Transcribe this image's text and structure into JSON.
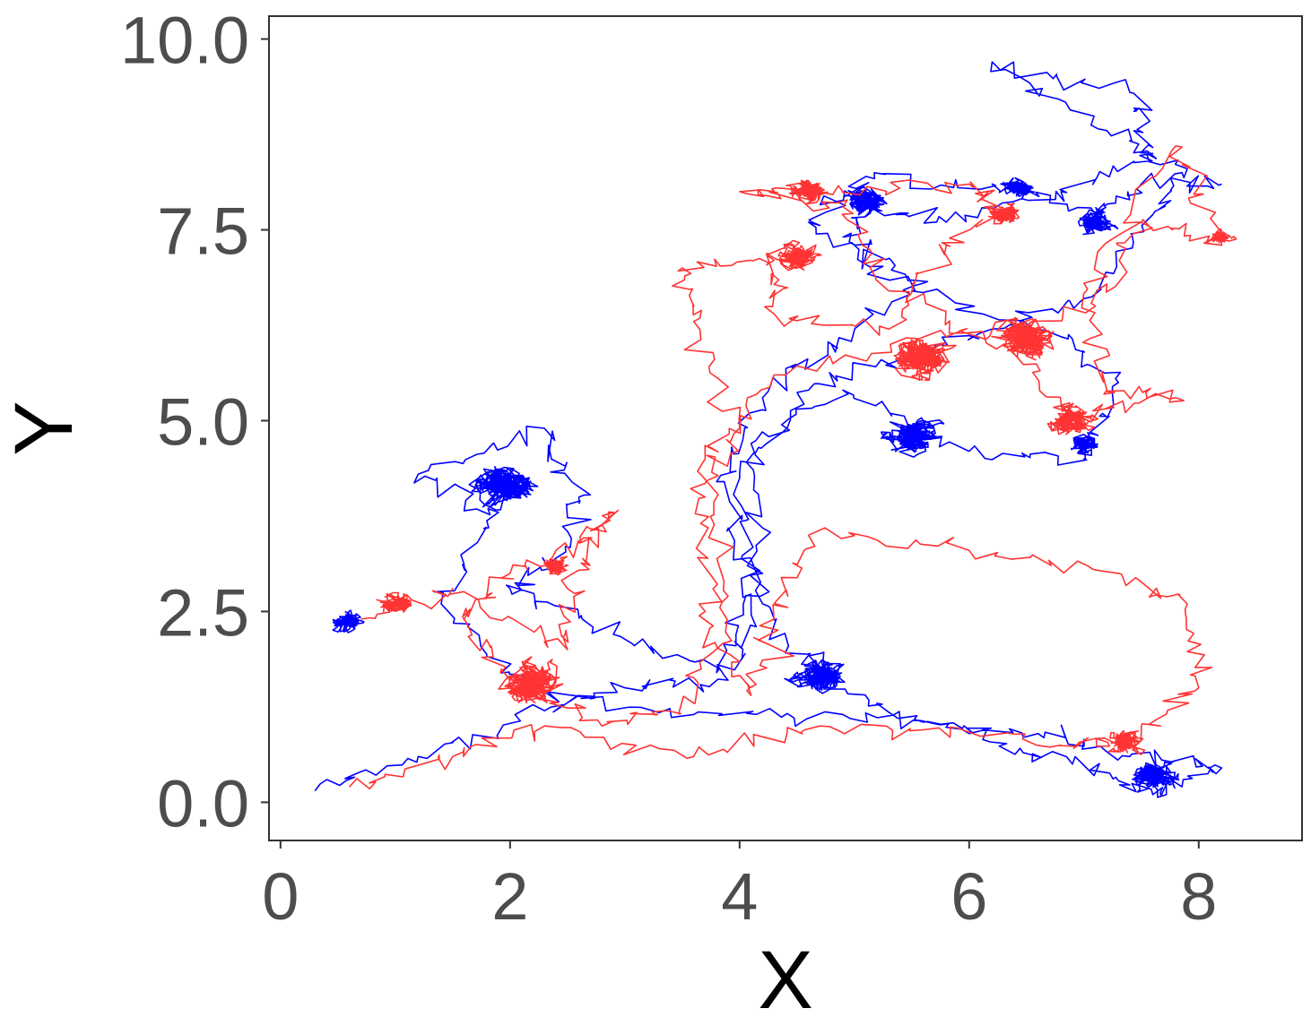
{
  "chart_data": {
    "type": "line",
    "xlabel": "X",
    "ylabel": "Y",
    "xlim": [
      -0.1,
      8.9
    ],
    "ylim": [
      -0.5,
      10.3
    ],
    "x_ticks": [
      "0",
      "2",
      "4",
      "6",
      "8"
    ],
    "y_ticks": [
      "0.0",
      "2.5",
      "5.0",
      "7.5",
      "10.0"
    ],
    "x_tick_values": [
      0,
      2,
      4,
      6,
      8
    ],
    "y_tick_values": [
      0,
      2.5,
      5,
      7.5,
      10
    ],
    "grid": false,
    "legend": "none",
    "series": [
      {
        "color": "#0000ff",
        "clusters": [
          {
            "cx": 1.95,
            "cy": 4.15,
            "r": 0.42
          },
          {
            "cx": 4.7,
            "cy": 1.65,
            "r": 0.35
          },
          {
            "cx": 5.5,
            "cy": 4.8,
            "r": 0.35
          },
          {
            "cx": 5.1,
            "cy": 7.9,
            "r": 0.3
          },
          {
            "cx": 6.4,
            "cy": 8.05,
            "r": 0.22
          },
          {
            "cx": 7.1,
            "cy": 7.6,
            "r": 0.25
          },
          {
            "cx": 7.6,
            "cy": 0.35,
            "r": 0.3
          },
          {
            "cx": 0.6,
            "cy": 2.35,
            "r": 0.22
          },
          {
            "cx": 7.0,
            "cy": 4.7,
            "r": 0.2
          }
        ],
        "path": [
          [
            0.3,
            0.15
          ],
          [
            1.2,
            0.6
          ],
          [
            2.3,
            1.2
          ],
          [
            3.0,
            1.5
          ],
          [
            3.9,
            1.6
          ],
          [
            4.1,
            2.5
          ],
          [
            4.0,
            4.3
          ],
          [
            4.6,
            5.4
          ],
          [
            5.4,
            5.8
          ],
          [
            6.2,
            6.2
          ],
          [
            7.0,
            6.6
          ],
          [
            7.6,
            7.7
          ],
          [
            7.9,
            8.3
          ],
          [
            7.2,
            8.8
          ],
          [
            6.2,
            9.7
          ],
          [
            7.4,
            9.3
          ],
          [
            7.6,
            8.5
          ],
          [
            6.8,
            8.0
          ],
          [
            5.8,
            7.6
          ],
          [
            5.1,
            7.9
          ],
          [
            5.0,
            7.3
          ],
          [
            5.6,
            6.8
          ],
          [
            4.8,
            6.0
          ],
          [
            4.2,
            5.3
          ],
          [
            3.8,
            4.2
          ],
          [
            4.2,
            2.6
          ],
          [
            4.7,
            1.6
          ],
          [
            5.6,
            1.05
          ],
          [
            6.6,
            0.9
          ],
          [
            7.4,
            0.6
          ],
          [
            8.2,
            0.45
          ],
          [
            7.6,
            0.1
          ],
          [
            6.9,
            0.5
          ],
          [
            6.0,
            0.9
          ],
          [
            4.9,
            1.15
          ],
          [
            3.6,
            1.15
          ],
          [
            2.2,
            1.45
          ],
          [
            1.4,
            2.6
          ],
          [
            1.9,
            3.8
          ],
          [
            1.2,
            4.3
          ],
          [
            2.3,
            4.9
          ],
          [
            2.6,
            4.0
          ],
          [
            2.4,
            3.2
          ],
          [
            2.0,
            2.8
          ],
          [
            2.9,
            2.2
          ],
          [
            3.8,
            1.7
          ],
          [
            4.2,
            3.0
          ],
          [
            4.1,
            4.7
          ],
          [
            4.9,
            5.4
          ],
          [
            6.0,
            4.6
          ],
          [
            7.0,
            4.5
          ],
          [
            7.3,
            5.5
          ],
          [
            6.8,
            6.1
          ],
          [
            5.5,
            6.7
          ],
          [
            4.6,
            7.6
          ],
          [
            5.1,
            8.2
          ],
          [
            6.2,
            8.1
          ],
          [
            7.1,
            7.7
          ],
          [
            7.5,
            8.1
          ],
          [
            8.2,
            8.1
          ]
        ]
      },
      {
        "color": "#ff3333",
        "clusters": [
          {
            "cx": 2.15,
            "cy": 1.55,
            "r": 0.42
          },
          {
            "cx": 5.6,
            "cy": 5.85,
            "r": 0.42
          },
          {
            "cx": 6.5,
            "cy": 6.05,
            "r": 0.4
          },
          {
            "cx": 6.9,
            "cy": 5.0,
            "r": 0.3
          },
          {
            "cx": 4.5,
            "cy": 7.15,
            "r": 0.28
          },
          {
            "cx": 4.6,
            "cy": 8.0,
            "r": 0.25
          },
          {
            "cx": 6.3,
            "cy": 7.7,
            "r": 0.22
          },
          {
            "cx": 7.35,
            "cy": 0.8,
            "r": 0.25
          },
          {
            "cx": 1.0,
            "cy": 2.6,
            "r": 0.22
          },
          {
            "cx": 2.4,
            "cy": 3.1,
            "r": 0.2
          },
          {
            "cx": 8.2,
            "cy": 7.4,
            "r": 0.15
          }
        ],
        "path": [
          [
            0.6,
            0.2
          ],
          [
            1.5,
            0.6
          ],
          [
            2.3,
            1.0
          ],
          [
            3.6,
            0.6
          ],
          [
            4.7,
            1.0
          ],
          [
            5.6,
            0.95
          ],
          [
            6.8,
            0.75
          ],
          [
            7.4,
            0.8
          ],
          [
            8.0,
            1.5
          ],
          [
            7.9,
            2.6
          ],
          [
            7.3,
            3.0
          ],
          [
            6.0,
            3.3
          ],
          [
            4.6,
            3.5
          ],
          [
            4.3,
            2.4
          ],
          [
            4.1,
            1.4
          ],
          [
            3.7,
            2.5
          ],
          [
            3.7,
            4.0
          ],
          [
            4.0,
            4.9
          ],
          [
            3.6,
            6.3
          ],
          [
            3.5,
            7.0
          ],
          [
            4.3,
            7.1
          ],
          [
            4.3,
            6.4
          ],
          [
            5.3,
            6.2
          ],
          [
            5.8,
            7.3
          ],
          [
            6.3,
            7.7
          ],
          [
            6.0,
            8.1
          ],
          [
            4.9,
            8.0
          ],
          [
            4.0,
            8.0
          ],
          [
            4.9,
            7.8
          ],
          [
            5.3,
            6.7
          ],
          [
            6.3,
            6.0
          ],
          [
            6.9,
            5.1
          ],
          [
            7.8,
            5.3
          ],
          [
            7.2,
            5.4
          ],
          [
            7.0,
            6.8
          ],
          [
            7.8,
            8.6
          ],
          [
            8.2,
            7.3
          ],
          [
            7.5,
            7.6
          ],
          [
            7.1,
            6.5
          ],
          [
            5.8,
            6.1
          ],
          [
            4.3,
            5.6
          ],
          [
            3.7,
            4.5
          ],
          [
            3.9,
            2.7
          ],
          [
            3.6,
            1.3
          ],
          [
            2.8,
            1.0
          ],
          [
            2.0,
            1.6
          ],
          [
            1.6,
            2.4
          ],
          [
            2.0,
            3.0
          ],
          [
            2.6,
            3.4
          ],
          [
            2.9,
            3.8
          ],
          [
            2.5,
            2.8
          ],
          [
            2.5,
            2.0
          ],
          [
            1.5,
            2.8
          ],
          [
            0.7,
            2.4
          ]
        ]
      }
    ]
  }
}
